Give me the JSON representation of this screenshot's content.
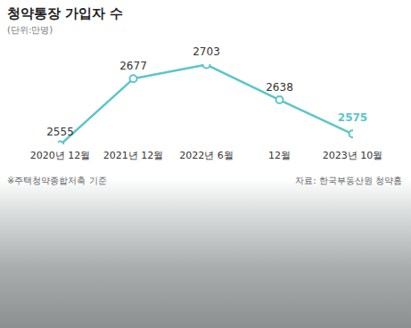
{
  "chart_data": {
    "type": "line",
    "title": "청약통장 가입자 수",
    "subtitle": "(단위:만명)",
    "categories": [
      "2020년 12월",
      "2021년 12월",
      "2022년 6월",
      "12월",
      "2023년 10월"
    ],
    "values": [
      2555,
      2677,
      2703,
      2638,
      2575
    ],
    "color": "#5cc6c9",
    "marker": "circle",
    "data_labels": true,
    "tick_labels": "x",
    "annotations": [
      "※주택청약종합저축 기준",
      "자료: 한국부동산원 청약홈"
    ]
  }
}
